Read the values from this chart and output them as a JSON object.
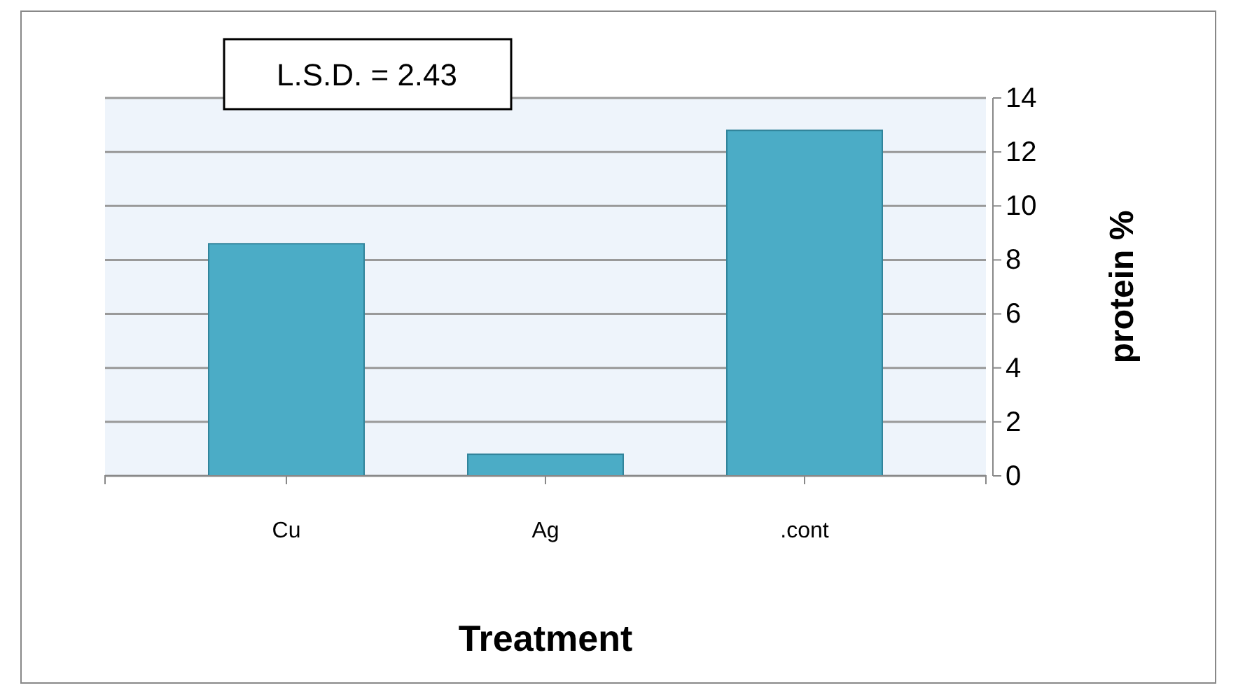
{
  "chart_data": {
    "type": "bar",
    "categories": [
      "Cu",
      "Ag",
      ".cont"
    ],
    "values": [
      8.6,
      0.8,
      12.8
    ],
    "color": "#4bacc6",
    "xlabel": "Treatment",
    "ylabel": "protein %",
    "ylim": [
      0,
      14
    ],
    "yticks": [
      0,
      2,
      4,
      6,
      8,
      10,
      12,
      14
    ],
    "grid": "y",
    "annotations": [
      "L.S.D. = 2.43"
    ]
  }
}
